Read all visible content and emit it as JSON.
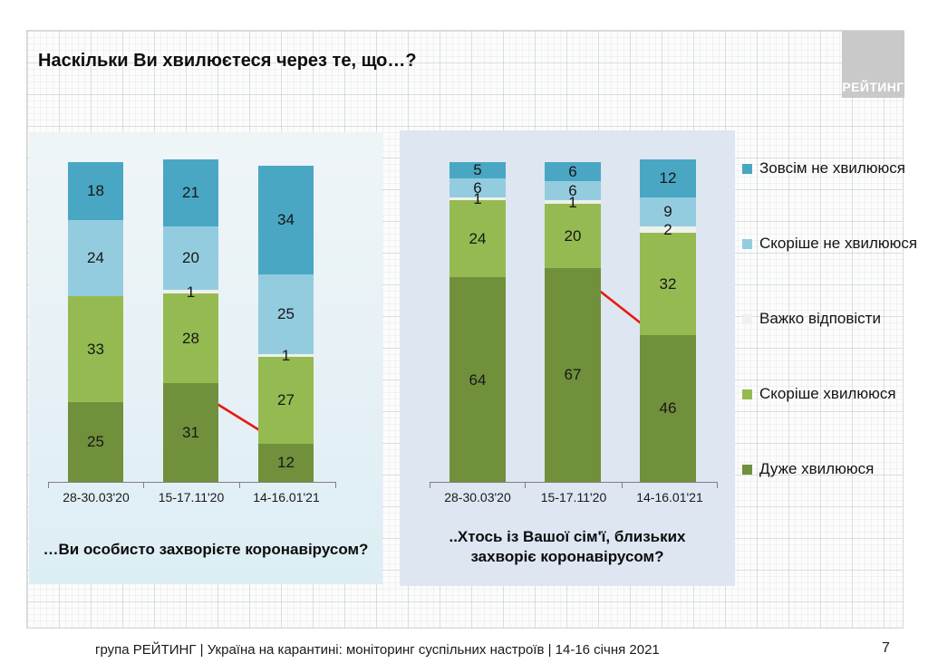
{
  "title": "Наскільки Ви хвилюєтеся через те, що…?",
  "logo": {
    "text": "РЕЙТИНГ"
  },
  "legend": [
    {
      "label": "Зовсім не хвилююся",
      "color": "#49a7c3"
    },
    {
      "label": "Скоріше не хвилююся",
      "color": "#94ccdf"
    },
    {
      "label": "Важко відповісти",
      "color": "#eef1ec"
    },
    {
      "label": "Скоріше хвилююся",
      "color": "#95ba51"
    },
    {
      "label": "Дуже хвилююся",
      "color": "#71903c"
    }
  ],
  "chart_data": [
    {
      "type": "bar",
      "stacked": true,
      "title": "…Ви особисто захворієте коронавірусом?",
      "categories": [
        "28-30.03'20",
        "15-17.11'20",
        "14-16.01'21"
      ],
      "ylim": [
        0,
        100
      ],
      "grid": false,
      "legend_position": "right",
      "series": [
        {
          "name": "Дуже хвилююся",
          "color": "#71903c",
          "values": [
            25,
            31,
            12
          ]
        },
        {
          "name": "Скоріше хвилююся",
          "color": "#95ba51",
          "values": [
            33,
            28,
            27
          ]
        },
        {
          "name": "Важко відповісти",
          "color": "#eef1ec",
          "values": [
            null,
            1,
            1
          ]
        },
        {
          "name": "Скоріше не хвилююся",
          "color": "#94ccdf",
          "values": [
            24,
            20,
            25
          ]
        },
        {
          "name": "Зовсім не хвилююся",
          "color": "#49a7c3",
          "values": [
            18,
            21,
            34
          ]
        }
      ],
      "annotation": "red arrow: decline of 'Дуже хвилююся' from 31 to 12"
    },
    {
      "type": "bar",
      "stacked": true,
      "title": "..Хтось із Вашої сім'ї, близьких захворіє коронавірусом?",
      "categories": [
        "28-30.03'20",
        "15-17.11'20",
        "14-16.01'21"
      ],
      "ylim": [
        0,
        100
      ],
      "grid": false,
      "legend_position": "right",
      "series": [
        {
          "name": "Дуже хвилююся",
          "color": "#71903c",
          "values": [
            64,
            67,
            46
          ]
        },
        {
          "name": "Скоріше хвилююся",
          "color": "#95ba51",
          "values": [
            24,
            20,
            32
          ]
        },
        {
          "name": "Важко відповісти",
          "color": "#eef1ec",
          "values": [
            1,
            1,
            2
          ]
        },
        {
          "name": "Скоріше не хвилююся",
          "color": "#94ccdf",
          "values": [
            6,
            6,
            9
          ]
        },
        {
          "name": "Зовсім не хвилююся",
          "color": "#49a7c3",
          "values": [
            5,
            6,
            12
          ]
        }
      ],
      "annotation": "red arrow: decline of 'Дуже хвилююся' from 67 to 46"
    }
  ],
  "footer": {
    "text": "група РЕЙТИНГ | Україна на карантині: моніторинг суспільних настроїв | 14-16 січня 2021",
    "page": "7"
  }
}
